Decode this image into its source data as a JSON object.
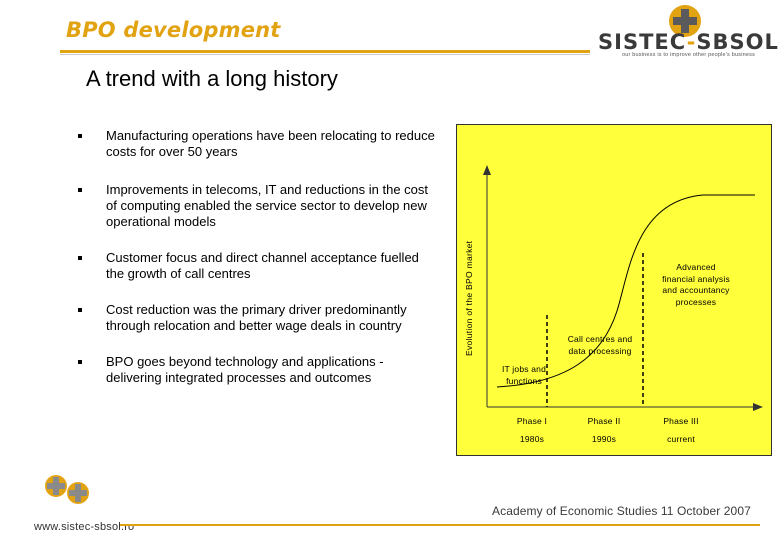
{
  "header": {
    "title": "BPO development",
    "logo_name": "SISTEC-SBSOL",
    "logo_tagline": "our business is to improve other people's business",
    "accent_color": "#e2a313"
  },
  "subtitle": "A trend with a long history",
  "bullets": [
    "Manufacturing operations have been relocating to reduce costs for over 50 years",
    "Improvements in telecoms, IT and reductions in the cost of computing enabled the service sector to develop new operational models",
    "Customer focus and direct channel acceptance fuelled the growth of call centres",
    "Cost reduction was the primary driver predominantly through relocation and better wage deals in country",
    "BPO goes beyond technology and applications - delivering integrated processes and outcomes"
  ],
  "chart": {
    "y_axis_label": "Evolution of the BPO market",
    "background": "#ffff3c",
    "annotations": {
      "it_jobs": "IT jobs and functions",
      "call_centres": "Call centres and data processing",
      "advanced": "Advanced financial analysis and accountancy processes"
    },
    "phases": [
      {
        "label": "Phase I",
        "period": "1980s"
      },
      {
        "label": "Phase II",
        "period": "1990s"
      },
      {
        "label": "Phase III",
        "period": "current"
      }
    ]
  },
  "footer": {
    "url": "www.sistec-sbsol.ro",
    "event": "Academy of Economic Studies  11 October 2007"
  }
}
